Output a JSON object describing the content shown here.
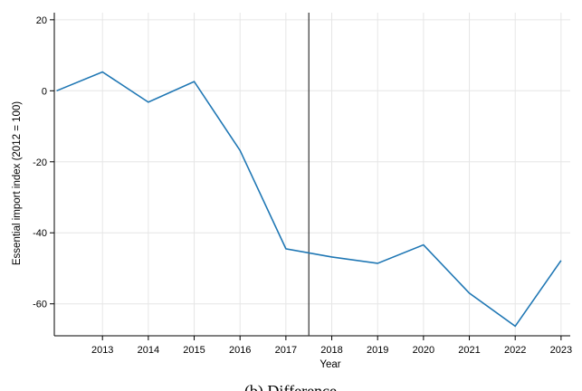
{
  "chart_data": {
    "type": "line",
    "title": "",
    "xlabel": "Year",
    "ylabel": "Essential import index (2012 = 100)",
    "caption": "(b) Difference",
    "x": [
      2012,
      2013,
      2014,
      2015,
      2016,
      2017,
      2018,
      2019,
      2020,
      2021,
      2022,
      2023
    ],
    "series": [
      {
        "values": [
          0,
          5.3,
          -3.2,
          2.6,
          -16.8,
          -44.5,
          -46.8,
          -48.6,
          -43.4,
          -57.0,
          -66.3,
          -47.8
        ],
        "color": "#1f77b4"
      }
    ],
    "xticks": [
      "2013",
      "2014",
      "2015",
      "2016",
      "2017",
      "2018",
      "2019",
      "2020",
      "2021",
      "2022",
      "2023"
    ],
    "yticks": [
      "20",
      "0",
      "-20",
      "-40",
      "-60"
    ],
    "ytick_values": [
      20,
      0,
      -20,
      -40,
      -60
    ],
    "xlim": [
      2011.95,
      2023.2
    ],
    "ylim": [
      -69,
      22
    ],
    "vertical_line_x": 2017.5,
    "vertical_line_color": "#333333",
    "grid": true,
    "grid_color": "#e6e6e6",
    "axis_color": "#000000"
  }
}
